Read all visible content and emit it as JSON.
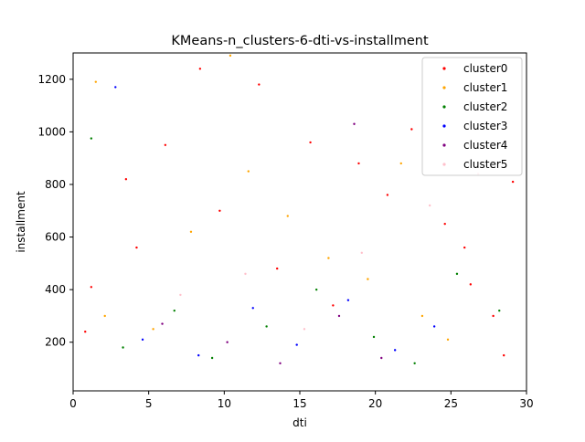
{
  "chart_data": {
    "type": "scatter",
    "title": "KMeans-n_clusters-6-dti-vs-installment",
    "xlabel": "dti",
    "ylabel": "installment",
    "xlim": [
      0,
      30
    ],
    "ylim": [
      15,
      1300
    ],
    "xticks": [
      "0",
      "5",
      "10",
      "15",
      "20",
      "25",
      "30"
    ],
    "yticks": [
      "200",
      "400",
      "600",
      "800",
      "1000",
      "1200"
    ],
    "grid": false,
    "legend_position": "top-right",
    "series": [
      {
        "name": "cluster0",
        "color": "#ff0000",
        "points": [
          [
            1.2,
            410
          ],
          [
            3.5,
            820
          ],
          [
            6.1,
            950
          ],
          [
            8.4,
            1240
          ],
          [
            12.3,
            1180
          ],
          [
            15.7,
            960
          ],
          [
            18.9,
            880
          ],
          [
            22.4,
            1010
          ],
          [
            24.6,
            650
          ],
          [
            26.3,
            420
          ],
          [
            27.8,
            300
          ],
          [
            29.1,
            810
          ],
          [
            28.5,
            150
          ],
          [
            25.9,
            560
          ],
          [
            0.8,
            240
          ],
          [
            4.2,
            560
          ],
          [
            9.7,
            700
          ],
          [
            13.5,
            480
          ],
          [
            17.2,
            340
          ],
          [
            20.8,
            760
          ]
        ]
      },
      {
        "name": "cluster1",
        "color": "#ffa500",
        "points": [
          [
            2.1,
            300
          ],
          [
            5.3,
            250
          ],
          [
            7.8,
            620
          ],
          [
            10.4,
            1290
          ],
          [
            14.2,
            680
          ],
          [
            16.9,
            520
          ],
          [
            19.5,
            440
          ],
          [
            23.1,
            300
          ],
          [
            24.8,
            210
          ],
          [
            1.5,
            1190
          ],
          [
            11.6,
            850
          ],
          [
            21.7,
            880
          ]
        ]
      },
      {
        "name": "cluster2",
        "color": "#008000",
        "points": [
          [
            3.3,
            180
          ],
          [
            6.7,
            320
          ],
          [
            9.2,
            140
          ],
          [
            12.8,
            260
          ],
          [
            16.1,
            400
          ],
          [
            19.9,
            220
          ],
          [
            22.6,
            120
          ],
          [
            25.4,
            460
          ],
          [
            28.2,
            320
          ],
          [
            1.2,
            975
          ]
        ]
      },
      {
        "name": "cluster3",
        "color": "#0000ff",
        "points": [
          [
            4.6,
            210
          ],
          [
            8.3,
            150
          ],
          [
            11.9,
            330
          ],
          [
            14.8,
            190
          ],
          [
            18.2,
            360
          ],
          [
            21.3,
            170
          ],
          [
            23.9,
            260
          ],
          [
            2.8,
            1170
          ]
        ]
      },
      {
        "name": "cluster4",
        "color": "#800080",
        "points": [
          [
            5.9,
            270
          ],
          [
            10.2,
            200
          ],
          [
            13.7,
            120
          ],
          [
            17.6,
            300
          ],
          [
            20.4,
            140
          ],
          [
            18.6,
            1030
          ]
        ]
      },
      {
        "name": "cluster5",
        "color": "#ffc0cb",
        "points": [
          [
            7.1,
            380
          ],
          [
            11.4,
            460
          ],
          [
            15.3,
            250
          ],
          [
            19.1,
            540
          ],
          [
            23.6,
            720
          ],
          [
            26.8,
            840
          ]
        ]
      }
    ]
  }
}
